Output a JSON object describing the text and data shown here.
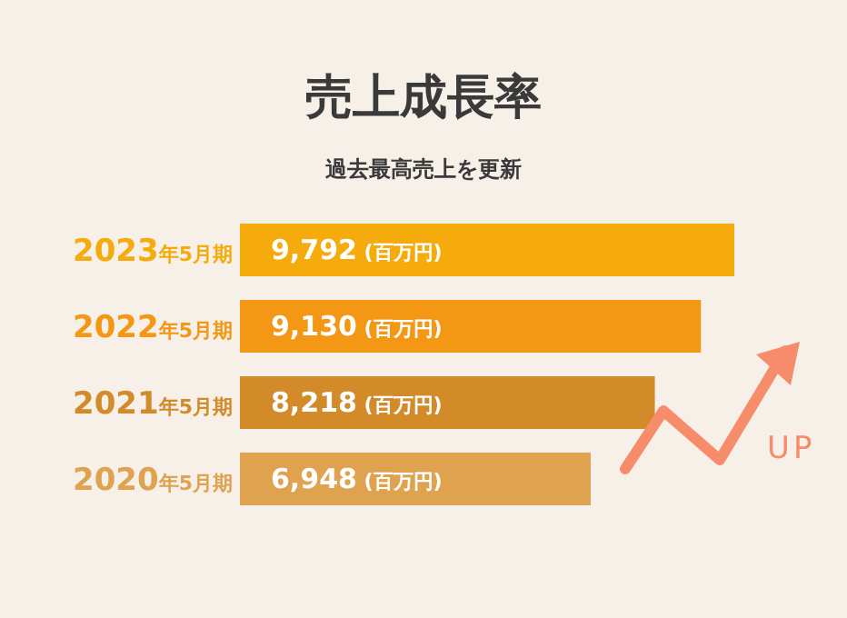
{
  "chart_data": {
    "type": "bar",
    "orientation": "horizontal",
    "title": "売上成長率",
    "subtitle": "過去最高売上を更新",
    "categories": [
      "2023年5月期",
      "2022年5月期",
      "2021年5月期",
      "2020年5月期"
    ],
    "values": [
      9792,
      9130,
      8218,
      6948
    ],
    "colors": [
      "#f5ab0c",
      "#f39715",
      "#d38b2a",
      "#dfa24f"
    ],
    "value_labels": [
      "9,792 (百万円)",
      "9,130 (百万円)",
      "8,218 (百万円)",
      "6,948 (百万円)"
    ],
    "annotations": [
      "UP"
    ]
  }
}
